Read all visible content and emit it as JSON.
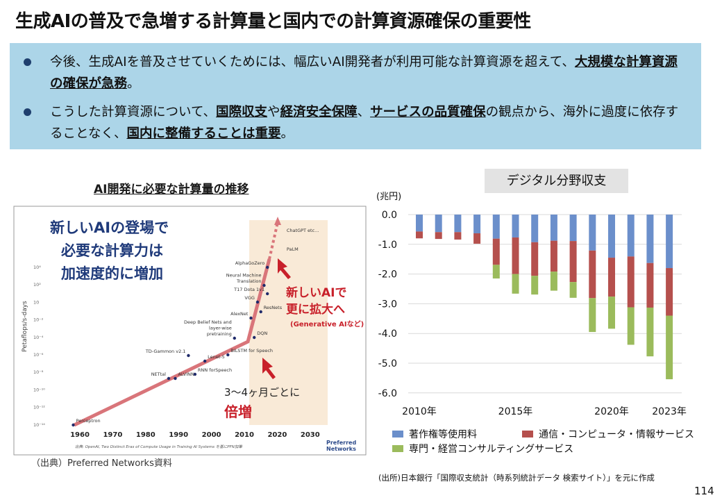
{
  "title": "生成AIの普及で急増する計算量と国内での計算資源確保の重要性",
  "bullets": [
    {
      "segments": [
        {
          "text": "今後、生成AIを普及させていくためには、幅広いAI開発者が利用可能な計算資源を超えて、",
          "bold": false
        },
        {
          "text": "大規模な計算資源の確保が急務",
          "bold": true
        },
        {
          "text": "。",
          "bold": false
        }
      ]
    },
    {
      "segments": [
        {
          "text": "こうした計算資源について、",
          "bold": false
        },
        {
          "text": "国際収支",
          "bold": true
        },
        {
          "text": "や",
          "bold": false
        },
        {
          "text": "経済安全保障",
          "bold": true
        },
        {
          "text": "、",
          "bold": false
        },
        {
          "text": "サービスの品質確保",
          "bold": true
        },
        {
          "text": "の観点から、海外に過度に依存することなく、",
          "bold": false
        },
        {
          "text": "国内に整備することは重要",
          "bold": true
        },
        {
          "text": "。",
          "bold": false
        }
      ]
    }
  ],
  "left_figure": {
    "heading": "AI開発に必要な計算量の推移",
    "headline": [
      "新しいAIの登場で",
      "必要な計算力は",
      "加速度的に増加"
    ],
    "callout_new": [
      "新しいAIで",
      "更に拡大へ"
    ],
    "callout_gen": "(Generative AIなど)",
    "callout_double": [
      "3～4ヶ月ごとに",
      "倍増"
    ],
    "ylabel": "Petaflops/s-days",
    "yticks": [
      "10⁴",
      "10²",
      "10",
      "10⁻²",
      "10⁻⁴",
      "10⁻⁶",
      "10⁻⁸",
      "10⁻¹⁰",
      "10⁻¹²",
      "10⁻¹⁴"
    ],
    "xticks": [
      "1960",
      "1970",
      "1980",
      "1990",
      "2000",
      "2010",
      "2020",
      "2030"
    ],
    "points": [
      {
        "label": "Perceptron",
        "year": 1958
      },
      {
        "label": "NETtal",
        "year": 1987
      },
      {
        "label": "ALVINN",
        "year": 1989
      },
      {
        "label": "TD-Gammon v2.1",
        "year": 1993
      },
      {
        "label": "RNN forSpeech",
        "year": 1995
      },
      {
        "label": "Lenet-5",
        "year": 1998
      },
      {
        "label": "BILSTM for Speech",
        "year": 2005
      },
      {
        "label": "Deep Belief Nets and layer-wise pretraining",
        "year": 2007
      },
      {
        "label": "DQN",
        "year": 2013
      },
      {
        "label": "AlexNet",
        "year": 2012
      },
      {
        "label": "ResNets",
        "year": 2015
      },
      {
        "label": "VGG",
        "year": 2014
      },
      {
        "label": "T17 Dota 1v1",
        "year": 2017
      },
      {
        "label": "Neural Machine Translation",
        "year": 2016
      },
      {
        "label": "AlphaGoZero",
        "year": 2017
      },
      {
        "label": "PaLM",
        "year": 2022
      },
      {
        "label": "ChatGPT etc…",
        "year": 2022
      }
    ],
    "footnote": "出典: OpenAI, Two Distinct Eras of Compute Usage in Training AI Systems を基にPFN加筆",
    "logo": "Preferred Networks",
    "source": "（出典）Preferred Networks資料",
    "colors": {
      "trend": "#d9757a",
      "shade": "#f9ead7",
      "headline": "#1f3a7a",
      "callout": "#c8202a"
    }
  },
  "chart_data": {
    "type": "bar",
    "stacked": true,
    "title": "デジタル分野収支",
    "ylabel": "(兆円)",
    "categories": [
      "2010年",
      "2011年",
      "2012年",
      "2013年",
      "2014年",
      "2015年",
      "2016年",
      "2017年",
      "2018年",
      "2019年",
      "2020年",
      "2021年",
      "2022年",
      "2023年"
    ],
    "xtick_labels": [
      "2010年",
      "2015年",
      "2020年",
      "2023年"
    ],
    "yticks": [
      "0.0",
      "-1.0",
      "-2.0",
      "-3.0",
      "-4.0",
      "-5.0",
      "-6.0"
    ],
    "ylim": [
      -6,
      0
    ],
    "grid": true,
    "legend_position": "bottom",
    "series": [
      {
        "name": "著作権等使用料",
        "color": "#6b8fcb",
        "values": [
          -0.57,
          -0.59,
          -0.59,
          -0.63,
          -0.81,
          -0.77,
          -0.93,
          -0.88,
          -0.89,
          -1.21,
          -1.45,
          -1.41,
          -1.63,
          -1.8
        ]
      },
      {
        "name": "通信・コンピュータ・情報サービス",
        "color": "#b5504d",
        "values": [
          -0.23,
          -0.23,
          -0.25,
          -0.35,
          -0.88,
          -1.23,
          -1.13,
          -1.04,
          -1.38,
          -1.6,
          -1.31,
          -1.71,
          -1.5,
          -1.6
        ]
      },
      {
        "name": "専門・経営コンサルティングサービス",
        "color": "#9bbb5c",
        "values": [
          0,
          0,
          0,
          0,
          -0.46,
          -0.66,
          -0.63,
          -0.64,
          -0.53,
          -1.14,
          -1.08,
          -1.26,
          -1.64,
          -2.14
        ]
      }
    ]
  },
  "chart_source": "(出所)日本銀行「国際収支統計（時系列統計データ 検索サイト）」を元に作成",
  "page_number": "114"
}
